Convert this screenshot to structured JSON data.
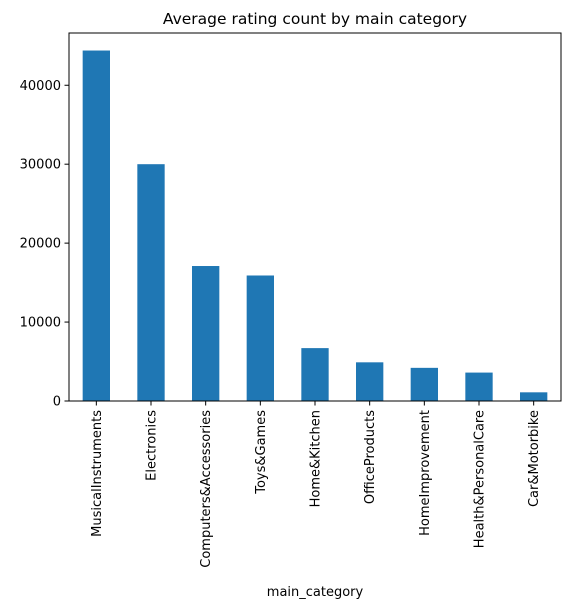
{
  "chart_data": {
    "type": "bar",
    "title": "Average rating count by main category",
    "xlabel": "main_category",
    "ylabel": "",
    "categories": [
      "MusicalInstruments",
      "Electronics",
      "Computers&Accessories",
      "Toys&Games",
      "Home&Kitchen",
      "OfficeProducts",
      "HomeImprovement",
      "Health&PersonalCare",
      "Car&Motorbike"
    ],
    "values": [
      44400,
      30000,
      17100,
      15900,
      6700,
      4900,
      4200,
      3600,
      1100
    ],
    "ylim": [
      0,
      46620
    ],
    "yticks": [
      0,
      10000,
      20000,
      30000,
      40000
    ],
    "ytick_labels": [
      "0",
      "10000",
      "20000",
      "30000",
      "40000"
    ],
    "bar_color": "#1f77b4",
    "grid": false,
    "legend": "none"
  }
}
